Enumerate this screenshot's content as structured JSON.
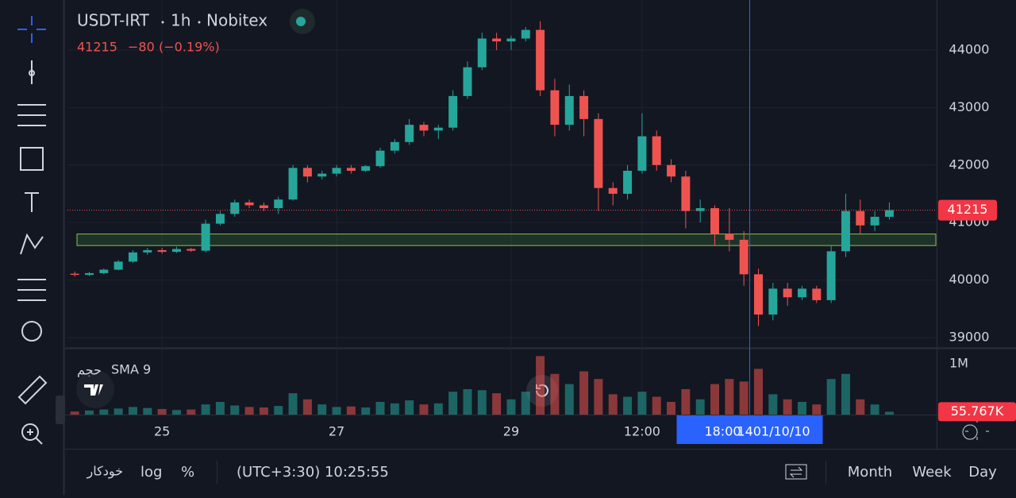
{
  "chart_data": {
    "type": "candlestick",
    "title": "USDT-IRT",
    "interval": "1h",
    "exchange": "Nobitex",
    "last_price": 41215,
    "change": {
      "value": -80,
      "label": "−80"
    },
    "change_pct": {
      "value": -0.19,
      "label": "(−0.19%)"
    },
    "up_color": "#26a69a",
    "down_color": "#ef5350",
    "open": [
      40110,
      40090,
      40120,
      40180,
      40320,
      40480,
      40520,
      40490,
      40540,
      40510,
      40980,
      41150,
      41350,
      41300,
      41250,
      41400,
      41950,
      41800,
      41850,
      41950,
      41900,
      41980,
      42250,
      42400,
      42700,
      42600,
      42650,
      43200,
      43700,
      44200,
      44150,
      44200,
      44350,
      43300,
      42700,
      43200,
      42800,
      41600,
      41500,
      41900,
      42500,
      42000,
      41800,
      41200,
      41250,
      40800,
      40700,
      40100,
      39400,
      39850,
      39700,
      39850,
      39650,
      40500,
      41200,
      40950,
      41100
    ],
    "high": [
      40150,
      40140,
      40200,
      40350,
      40520,
      40560,
      40560,
      40580,
      40560,
      41050,
      41200,
      41400,
      41400,
      41350,
      41450,
      42000,
      42000,
      41900,
      42000,
      42000,
      42000,
      42300,
      42450,
      42800,
      42750,
      42700,
      43300,
      43800,
      44300,
      44300,
      44250,
      44400,
      44500,
      43500,
      43400,
      43300,
      42900,
      41700,
      42000,
      42900,
      42600,
      42100,
      41900,
      41400,
      41300,
      41250,
      40850,
      40200,
      39950,
      39950,
      39900,
      39900,
      40600,
      41500,
      41400,
      41200,
      41350
    ],
    "low": [
      40060,
      40070,
      40100,
      40170,
      40300,
      40440,
      40460,
      40470,
      40490,
      40480,
      40950,
      41100,
      41250,
      41200,
      41150,
      41380,
      41700,
      41750,
      41800,
      41850,
      41880,
      41950,
      42200,
      42350,
      42500,
      42450,
      42600,
      43150,
      43650,
      44000,
      44000,
      44150,
      43200,
      42500,
      42600,
      42500,
      41200,
      41300,
      41400,
      41850,
      41900,
      41700,
      40900,
      41000,
      40600,
      40500,
      39900,
      39200,
      39300,
      39550,
      39650,
      39600,
      39600,
      40400,
      40800,
      40850,
      41050
    ],
    "close": [
      40090,
      40120,
      40180,
      40320,
      40480,
      40520,
      40490,
      40540,
      40510,
      40980,
      41150,
      41350,
      41300,
      41250,
      41400,
      41950,
      41800,
      41850,
      41950,
      41900,
      41980,
      42250,
      42400,
      42700,
      42600,
      42650,
      43200,
      43700,
      44200,
      44150,
      44200,
      44350,
      43300,
      42700,
      43200,
      42800,
      41600,
      41500,
      41900,
      42500,
      42000,
      41800,
      41200,
      41250,
      40800,
      40700,
      40100,
      39400,
      39850,
      39700,
      39850,
      39650,
      40500,
      41200,
      40950,
      41100,
      41215
    ],
    "ylim": [
      38820,
      44870
    ],
    "yticks": [
      39000,
      40000,
      41000,
      42000,
      43000,
      44000
    ],
    "xlim": [
      -0.5,
      59.25
    ],
    "xticks": [
      {
        "value": 6,
        "label": "25"
      },
      {
        "value": 18,
        "label": "27"
      },
      {
        "value": 30,
        "label": "29"
      },
      {
        "value": 39,
        "label": "12:00"
      }
    ],
    "zone": [
      40600,
      40800
    ],
    "crosshair": {
      "value": 46.4,
      "time": "18:00",
      "date": "1401/10/10"
    },
    "volume": {
      "title": "حجم",
      "indicator": "SMA 9",
      "ylim": [
        0,
        1280000
      ],
      "yticks": [
        {
          "value": 1000000,
          "label": "1M"
        }
      ],
      "values": [
        60000,
        80000,
        100000,
        120000,
        150000,
        130000,
        110000,
        90000,
        100000,
        200000,
        250000,
        180000,
        150000,
        140000,
        170000,
        420000,
        300000,
        200000,
        150000,
        160000,
        140000,
        250000,
        220000,
        280000,
        200000,
        220000,
        450000,
        500000,
        480000,
        420000,
        300000,
        450000,
        1150000,
        800000,
        600000,
        850000,
        700000,
        400000,
        350000,
        450000,
        350000,
        250000,
        500000,
        300000,
        600000,
        700000,
        650000,
        900000,
        400000,
        300000,
        250000,
        200000,
        700000,
        800000,
        300000,
        200000,
        55767
      ],
      "last": {
        "value": 55767,
        "label": "55.767K"
      }
    }
  },
  "toolbar": {
    "auto": "خودکار",
    "log": "log",
    "percent": "%",
    "clock": "(UTC+3:30) 10:25:55",
    "ranges": [
      "Month",
      "Week",
      "Day"
    ]
  }
}
